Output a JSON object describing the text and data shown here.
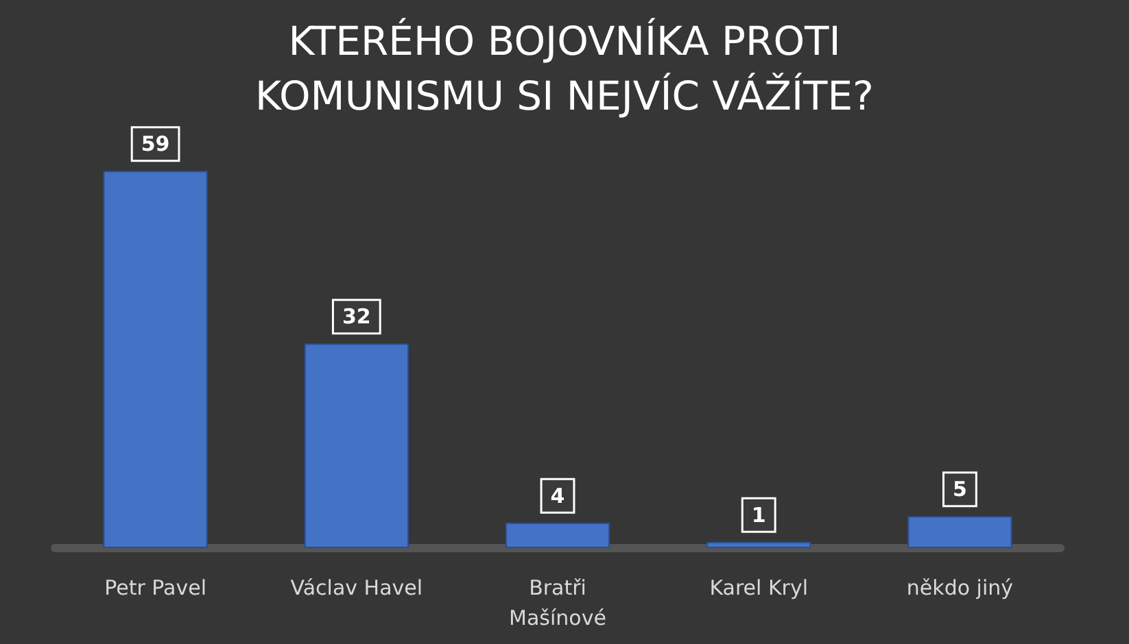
{
  "chart_data": {
    "type": "bar",
    "title": "KTERÉHO BOJOVNÍKA PROTI\nKOMUNISMU SI NEJVÍC VÁŽÍTE?",
    "categories": [
      "Petr Pavel",
      "Václav Havel",
      "Bratři\nMašínové",
      "Karel Kryl",
      "někdo jiný"
    ],
    "values": [
      59,
      32,
      4,
      1,
      5
    ],
    "color": "#4472c4",
    "data_labels": true
  }
}
